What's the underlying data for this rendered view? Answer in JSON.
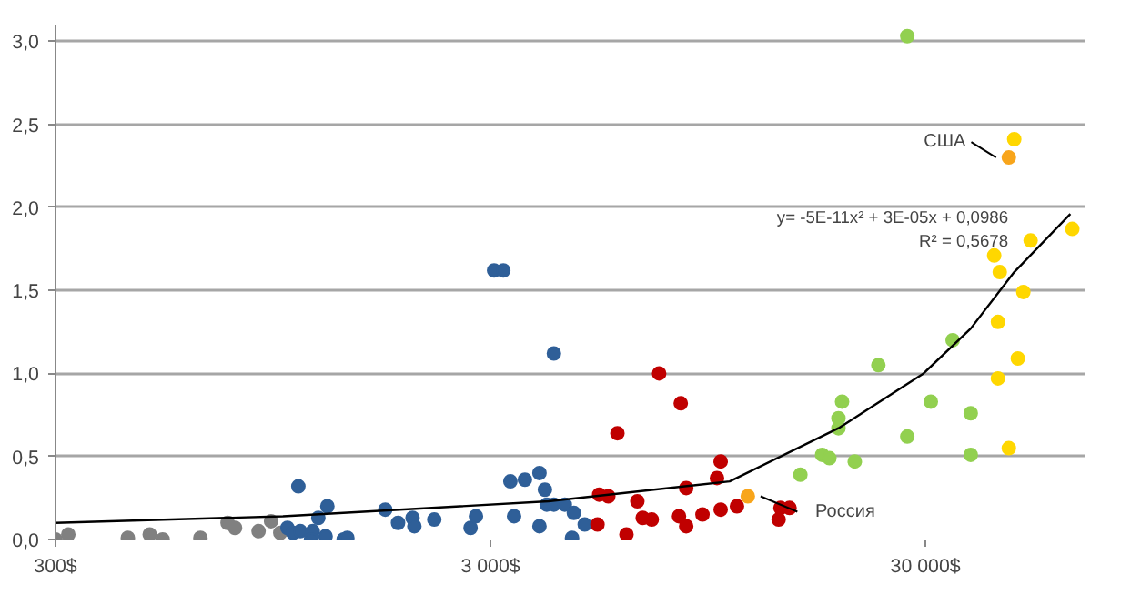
{
  "chart_data": {
    "type": "scatter",
    "xlim": [
      300,
      70000
    ],
    "ylim": [
      0,
      3.1
    ],
    "log": "x",
    "grid": "y",
    "marker": "circle",
    "xticks": [
      {
        "value": 300,
        "label": "300$"
      },
      {
        "value": 3000,
        "label": "3 000$"
      },
      {
        "value": 30000,
        "label": "30 000$"
      }
    ],
    "yticks": [
      {
        "value": 0,
        "label": "0,0"
      },
      {
        "value": 0.5,
        "label": "0,5"
      },
      {
        "value": 1,
        "label": "1,0"
      },
      {
        "value": 1.5,
        "label": "1,5"
      },
      {
        "value": 2,
        "label": "2,0"
      },
      {
        "value": 2.5,
        "label": "2,5"
      },
      {
        "value": 3,
        "label": "3,0"
      }
    ],
    "series": [
      {
        "color": "#808080",
        "x": [
          300,
          321,
          440,
          494,
          529,
          646,
          746,
          776,
          879,
          939,
          986
        ],
        "values": [
          0.0,
          0.03,
          0.01,
          0.03,
          0.0,
          0.01,
          0.1,
          0.07,
          0.05,
          0.11,
          0.04
        ]
      },
      {
        "color": "#2f5f98",
        "x": [
          1024,
          1055,
          1096,
          1085,
          1171,
          1160,
          1206,
          1253,
          1265,
          1379,
          1406,
          1719,
          1839,
          1986,
          2005,
          2228,
          2649,
          2700,
          2778,
          3058,
          3211,
          3333,
          3399,
          3600,
          3888,
          3888,
          4002,
          4041,
          4197,
          4197,
          4446,
          4665,
          4620,
          4941
        ],
        "values": [
          0.07,
          0.04,
          0.05,
          0.32,
          0.05,
          0.0,
          0.13,
          0.02,
          0.2,
          0.0,
          0.01,
          0.18,
          0.1,
          0.13,
          0.08,
          0.12,
          null,
          0.07,
          0.14,
          1.62,
          1.62,
          0.35,
          0.14,
          0.36,
          0.4,
          0.08,
          0.3,
          0.21,
          0.21,
          1.12,
          0.21,
          0.16,
          0.01,
          0.09
        ]
      },
      {
        "color": "#c00000",
        "x": [
          5286,
          5334,
          5598,
          5874,
          6162,
          6528,
          6717,
          7047,
          7326,
          8139,
          8214,
          8454,
          8454,
          9216,
          9762,
          9951,
          10146,
          10146,
          11061,
          13791,
          13926,
          14610
        ],
        "values": [
          0.09,
          0.27,
          0.26,
          0.64,
          0.03,
          0.23,
          0.13,
          0.12,
          1.0,
          0.14,
          0.82,
          0.31,
          0.08,
          0.15,
          null,
          0.37,
          0.47,
          0.18,
          0.2,
          0.12,
          0.19,
          0.19
        ]
      },
      {
        "color": "#92d050",
        "x": [
          15474,
          17364,
          18042,
          18930,
          18930,
          19296,
          20640,
          23382,
          27249,
          27249,
          30870,
          34650,
          38130,
          38130
        ],
        "values": [
          0.39,
          0.51,
          0.49,
          0.67,
          0.73,
          0.83,
          0.47,
          1.05,
          0.62,
          3.03,
          0.83,
          1.2,
          0.76,
          0.51
        ]
      },
      {
        "color": "#ffd700",
        "x": [
          46650,
          44040,
          48930,
          44040,
          50370,
          44460,
          43170,
          52350,
          65280,
          48000
        ],
        "values": [
          0.55,
          0.97,
          1.09,
          1.31,
          1.49,
          1.61,
          1.71,
          1.8,
          1.87,
          2.41
        ]
      },
      {
        "color": "#f8a51b",
        "x": [
          11715,
          46650
        ],
        "values": [
          0.26,
          2.3
        ]
      },
      {
        "type": "line",
        "marker": "none",
        "color": "#000000",
        "x": [
          300,
          1000,
          4080,
          10644,
          18930,
          29700,
          38130,
          48000,
          64620
        ],
        "values": [
          0.1,
          0.14,
          0.23,
          0.35,
          0.67,
          1.0,
          1.27,
          1.61,
          1.96
        ]
      }
    ],
    "annotations": [
      {
        "text": "Россия",
        "x": 11715,
        "y": 0.26
      },
      {
        "text": "США",
        "x": 46650,
        "y": 2.3
      },
      "y= -5E-11x² + 3E-05x + 0,0986",
      "R² = 0,5678"
    ]
  }
}
